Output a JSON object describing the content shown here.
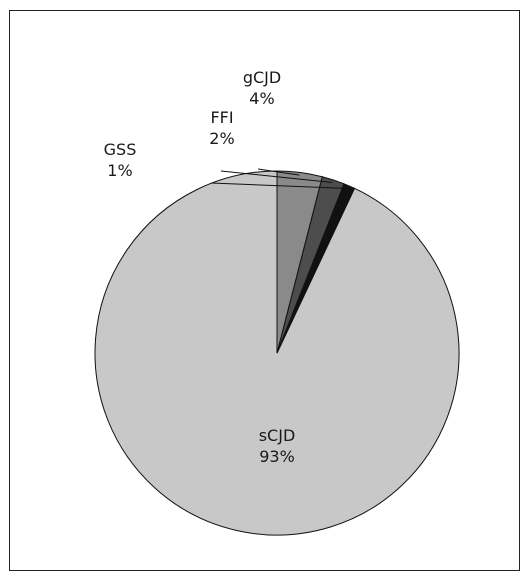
{
  "chart_data": {
    "type": "pie",
    "categories": [
      "sCJD",
      "GSS",
      "FFI",
      "gCJD"
    ],
    "values": [
      93,
      1,
      2,
      4
    ],
    "value_labels": [
      "93%",
      "1%",
      "2%",
      "4%"
    ],
    "colors": [
      "#c8c8c8",
      "#111111",
      "#4d4d4d",
      "#8a8a8a"
    ],
    "stroke_color": "#111111",
    "start": "12 o'clock",
    "direction": "counterclockwise",
    "title": "",
    "legend": "none"
  }
}
